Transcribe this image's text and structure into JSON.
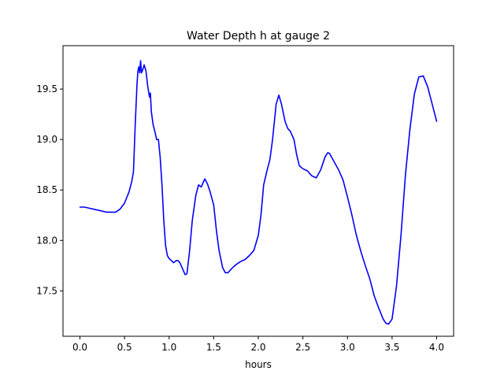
{
  "chart_data": {
    "type": "line",
    "title": "Water Depth h at gauge 2",
    "xlabel": "hours",
    "ylabel": "",
    "xlim": [
      -0.19,
      4.19
    ],
    "ylim": [
      17.05,
      19.93
    ],
    "xticks": [
      "0.0",
      "0.5",
      "1.0",
      "1.5",
      "2.0",
      "2.5",
      "3.0",
      "3.5",
      "4.0"
    ],
    "yticks": [
      "17.5",
      "18.0",
      "18.5",
      "19.0",
      "19.5"
    ],
    "grid": false,
    "legend": "none",
    "series": [
      {
        "color": "#0000ff",
        "x": [
          0.0,
          0.05,
          0.1,
          0.2,
          0.3,
          0.35,
          0.4,
          0.45,
          0.5,
          0.55,
          0.58,
          0.6,
          0.62,
          0.64,
          0.65,
          0.66,
          0.67,
          0.68,
          0.69,
          0.7,
          0.72,
          0.74,
          0.76,
          0.78,
          0.79,
          0.8,
          0.82,
          0.84,
          0.86,
          0.88,
          0.9,
          0.92,
          0.94,
          0.96,
          0.98,
          1.0,
          1.05,
          1.08,
          1.1,
          1.12,
          1.15,
          1.18,
          1.2,
          1.23,
          1.26,
          1.3,
          1.33,
          1.36,
          1.38,
          1.4,
          1.43,
          1.46,
          1.5,
          1.53,
          1.56,
          1.6,
          1.63,
          1.66,
          1.68,
          1.7,
          1.75,
          1.8,
          1.85,
          1.9,
          1.95,
          2.0,
          2.03,
          2.06,
          2.1,
          2.13,
          2.16,
          2.2,
          2.23,
          2.26,
          2.3,
          2.33,
          2.36,
          2.4,
          2.43,
          2.46,
          2.5,
          2.55,
          2.6,
          2.65,
          2.7,
          2.75,
          2.78,
          2.8,
          2.85,
          2.9,
          2.95,
          3.0,
          3.05,
          3.1,
          3.15,
          3.2,
          3.25,
          3.3,
          3.35,
          3.4,
          3.43,
          3.46,
          3.5,
          3.55,
          3.6,
          3.65,
          3.7,
          3.75,
          3.8,
          3.85,
          3.9,
          3.95,
          4.0
        ],
        "y": [
          18.33,
          18.33,
          18.32,
          18.3,
          18.28,
          18.28,
          18.28,
          18.31,
          18.37,
          18.48,
          18.58,
          18.68,
          19.15,
          19.55,
          19.68,
          19.72,
          19.66,
          19.78,
          19.66,
          19.68,
          19.74,
          19.68,
          19.53,
          19.42,
          19.46,
          19.28,
          19.15,
          19.08,
          19.0,
          19.0,
          18.82,
          18.55,
          18.2,
          17.95,
          17.85,
          17.82,
          17.78,
          17.8,
          17.8,
          17.78,
          17.72,
          17.66,
          17.67,
          17.9,
          18.2,
          18.45,
          18.55,
          18.53,
          18.57,
          18.61,
          18.56,
          18.48,
          18.35,
          18.1,
          17.9,
          17.73,
          17.68,
          17.68,
          17.7,
          17.72,
          17.76,
          17.79,
          17.81,
          17.85,
          17.9,
          18.05,
          18.25,
          18.55,
          18.7,
          18.8,
          19.0,
          19.35,
          19.44,
          19.35,
          19.18,
          19.11,
          19.08,
          19.0,
          18.85,
          18.74,
          18.71,
          18.69,
          18.64,
          18.62,
          18.7,
          18.83,
          18.87,
          18.86,
          18.78,
          18.7,
          18.6,
          18.43,
          18.25,
          18.05,
          17.89,
          17.75,
          17.62,
          17.45,
          17.33,
          17.22,
          17.18,
          17.17,
          17.22,
          17.55,
          18.05,
          18.65,
          19.1,
          19.45,
          19.62,
          19.63,
          19.52,
          19.35,
          19.18
        ]
      }
    ]
  }
}
